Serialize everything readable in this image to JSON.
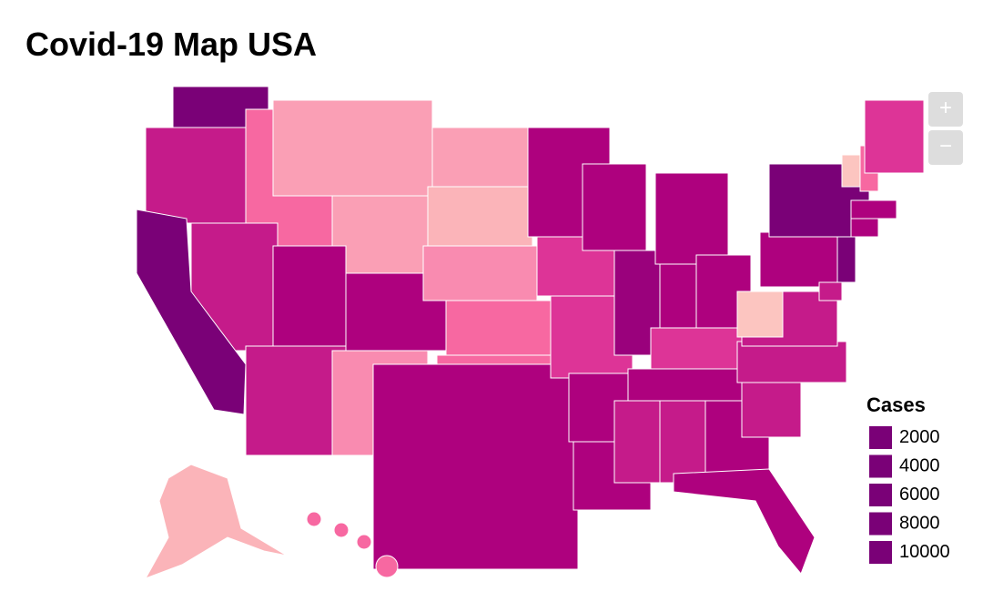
{
  "title": "Covid-19 Map USA",
  "zoom": {
    "in": "+",
    "out": "−"
  },
  "legend": {
    "title": "Cases",
    "items": [
      {
        "value": 2000,
        "color": "#7a0177"
      },
      {
        "value": 4000,
        "color": "#7a0177"
      },
      {
        "value": 6000,
        "color": "#7a0177"
      },
      {
        "value": 8000,
        "color": "#7a0177"
      },
      {
        "value": 10000,
        "color": "#7a0177"
      }
    ]
  }
}
